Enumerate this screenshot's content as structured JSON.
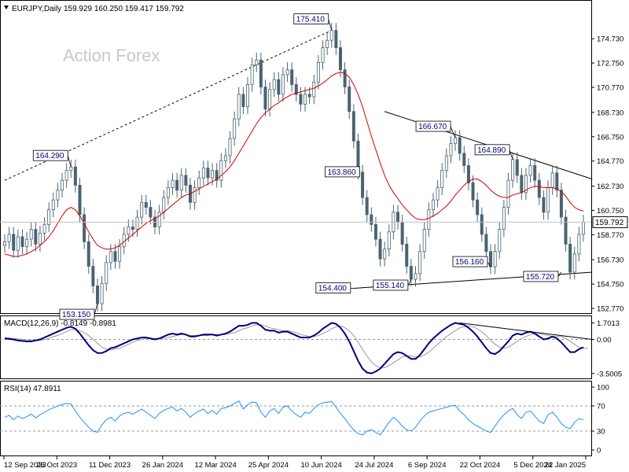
{
  "header": {
    "symbol_line": "EURJPY,Daily  159.929 160.250 159.417 159.792",
    "watermark": "Action Forex"
  },
  "colors": {
    "candles": "#4a6372",
    "ma": "#d00000",
    "macd_main": "#000080",
    "macd_signal": "#999999",
    "rsi": "#1e90ff",
    "last_price_box": "#ffffff",
    "grid": "#c0c0c0"
  },
  "chart_data": [
    {
      "type": "line",
      "name": "price",
      "title": "EURJPY,Daily",
      "ohlc_last": {
        "open": 159.929,
        "high": 160.25,
        "low": 159.417,
        "close": 159.792
      },
      "ylim": [
        152.77,
        176.73
      ],
      "y_ticks": [
        "174.730",
        "172.750",
        "170.770",
        "168.730",
        "166.750",
        "164.770",
        "162.730",
        "160.750",
        "158.770",
        "156.730",
        "154.750",
        "152.770"
      ],
      "x_ticks": [
        "12 Sep 2023",
        "26 Oct 2023",
        "11 Dec 2023",
        "26 Jan 2024",
        "12 Mar 2024",
        "25 Apr 2024",
        "10 Jun 2024",
        "24 Jul 2024",
        "6 Sep 2024",
        "22 Oct 2024",
        "5 Dec 2024",
        "22 Jan 2025"
      ],
      "last_price_label": "159.792",
      "close_series": [
        158.2,
        158.8,
        157.5,
        158.6,
        157.8,
        158.4,
        159.2,
        158.0,
        158.9,
        159.6,
        160.8,
        161.6,
        162.4,
        163.2,
        164.0,
        164.29,
        162.8,
        160.4,
        158.2,
        156.2,
        154.6,
        153.15,
        154.8,
        156.5,
        157.4,
        156.6,
        157.8,
        158.8,
        159.4,
        159.2,
        160.2,
        161.4,
        161.0,
        160.2,
        159.4,
        160.6,
        161.8,
        162.6,
        163.2,
        162.4,
        163.6,
        162.8,
        161.4,
        162.6,
        163.4,
        164.2,
        163.4,
        164.0,
        163.2,
        164.8,
        165.2,
        166.6,
        168.2,
        170.2,
        169.2,
        171.0,
        172.6,
        173.0,
        170.8,
        169.0,
        170.6,
        171.4,
        170.2,
        171.8,
        172.2,
        171.0,
        170.2,
        169.4,
        170.2,
        170.0,
        171.2,
        172.8,
        174.0,
        174.6,
        175.41,
        174.0,
        172.2,
        170.8,
        168.8,
        166.4,
        163.86,
        161.8,
        160.4,
        159.6,
        158.4,
        156.8,
        157.6,
        159.0,
        160.6,
        159.8,
        158.0,
        156.2,
        155.14,
        155.6,
        157.4,
        159.2,
        160.8,
        161.6,
        162.6,
        164.0,
        165.2,
        166.2,
        166.67,
        165.4,
        164.4,
        163.0,
        161.6,
        160.4,
        158.8,
        157.4,
        156.16,
        157.4,
        159.2,
        161.0,
        163.2,
        164.89,
        163.6,
        162.2,
        163.6,
        164.4,
        163.2,
        161.8,
        160.6,
        162.6,
        163.8,
        162.4,
        160.2,
        158.0,
        155.72,
        157.2,
        158.8,
        159.792
      ],
      "ma_series": [
        157.2,
        157.1,
        157.0,
        157.0,
        157.1,
        157.2,
        157.4,
        157.6,
        157.9,
        158.2,
        158.6,
        159.1,
        159.7,
        160.3,
        160.8,
        161.0,
        160.8,
        160.3,
        159.7,
        159.0,
        158.4,
        157.9,
        157.7,
        157.6,
        157.6,
        157.7,
        157.9,
        158.2,
        158.5,
        158.8,
        159.1,
        159.4,
        159.7,
        159.9,
        160.1,
        160.3,
        160.6,
        160.9,
        161.2,
        161.5,
        161.8,
        162.0,
        162.1,
        162.3,
        162.5,
        162.7,
        162.9,
        163.1,
        163.3,
        163.6,
        163.9,
        164.3,
        164.8,
        165.4,
        166.0,
        166.6,
        167.2,
        167.8,
        168.3,
        168.7,
        169.0,
        169.3,
        169.5,
        169.8,
        170.0,
        170.2,
        170.3,
        170.4,
        170.5,
        170.6,
        170.7,
        170.9,
        171.1,
        171.4,
        171.7,
        171.9,
        172.0,
        171.9,
        171.6,
        171.0,
        170.2,
        169.2,
        168.0,
        166.8,
        165.7,
        164.6,
        163.6,
        162.8,
        162.2,
        161.7,
        161.2,
        160.8,
        160.4,
        160.1,
        160.0,
        160.0,
        160.1,
        160.3,
        160.5,
        160.8,
        161.1,
        161.5,
        162.0,
        162.4,
        162.8,
        163.1,
        163.3,
        163.3,
        163.1,
        162.8,
        162.4,
        162.1,
        161.9,
        161.8,
        161.8,
        162.0,
        162.1,
        162.2,
        162.4,
        162.6,
        162.7,
        162.7,
        162.6,
        162.6,
        162.6,
        162.5,
        162.3,
        161.9,
        161.4,
        161.0,
        160.8,
        160.7
      ],
      "annotations": [
        {
          "text": "175.410",
          "price": 175.41,
          "index": 74
        },
        {
          "text": "164.290",
          "price": 164.29,
          "index": 15
        },
        {
          "text": "153.150",
          "price": 153.15,
          "index": 21
        },
        {
          "text": "163.860",
          "price": 163.86,
          "index": 80
        },
        {
          "text": "154.400",
          "price": 154.4,
          "index": 79
        },
        {
          "text": "155.140",
          "price": 155.14,
          "index": 92
        },
        {
          "text": "166.670",
          "price": 166.67,
          "index": 102
        },
        {
          "text": "156.160",
          "price": 156.16,
          "index": 110
        },
        {
          "text": "164.890",
          "price": 164.89,
          "index": 115
        },
        {
          "text": "155.720",
          "price": 155.72,
          "index": 126
        }
      ]
    },
    {
      "type": "line",
      "name": "macd",
      "title": "MACD(12,26,9) -0.8149 -0.8981",
      "ylim": [
        -3.6,
        1.9
      ],
      "y_ticks": [
        "1.7013",
        "0.00",
        "-3.5005"
      ],
      "main_series": [
        0.1,
        0.05,
        0.0,
        -0.1,
        -0.15,
        -0.2,
        -0.2,
        -0.1,
        0.0,
        0.2,
        0.4,
        0.6,
        0.8,
        1.0,
        1.2,
        1.3,
        1.1,
        0.6,
        0.0,
        -0.6,
        -1.1,
        -1.4,
        -1.4,
        -1.2,
        -0.9,
        -0.8,
        -0.6,
        -0.4,
        -0.2,
        0.0,
        0.1,
        0.2,
        0.2,
        0.1,
        0.0,
        0.1,
        0.3,
        0.5,
        0.6,
        0.5,
        0.6,
        0.5,
        0.3,
        0.3,
        0.4,
        0.5,
        0.5,
        0.5,
        0.4,
        0.5,
        0.6,
        0.8,
        1.1,
        1.4,
        1.4,
        1.5,
        1.7,
        1.7,
        1.4,
        1.0,
        0.9,
        0.9,
        0.7,
        0.8,
        0.8,
        0.6,
        0.4,
        0.2,
        0.2,
        0.2,
        0.4,
        0.7,
        1.1,
        1.4,
        1.7,
        1.6,
        1.2,
        0.6,
        -0.2,
        -1.2,
        -2.2,
        -3.0,
        -3.4,
        -3.5,
        -3.3,
        -3.0,
        -2.5,
        -2.0,
        -1.5,
        -1.3,
        -1.4,
        -1.7,
        -2.0,
        -2.0,
        -1.6,
        -1.0,
        -0.4,
        0.1,
        0.5,
        0.9,
        1.2,
        1.5,
        1.7,
        1.6,
        1.5,
        1.2,
        0.8,
        0.3,
        -0.3,
        -0.9,
        -1.4,
        -1.5,
        -1.2,
        -0.7,
        -0.2,
        0.4,
        0.6,
        0.5,
        0.7,
        0.8,
        0.6,
        0.3,
        0.0,
        0.1,
        0.3,
        0.1,
        -0.3,
        -0.8,
        -1.3,
        -1.3,
        -1.0,
        -0.8149
      ],
      "signal_series": [
        0.2,
        0.15,
        0.1,
        0.05,
        0.0,
        -0.05,
        -0.1,
        -0.1,
        -0.1,
        0.0,
        0.1,
        0.3,
        0.4,
        0.6,
        0.8,
        1.0,
        1.0,
        0.9,
        0.7,
        0.4,
        0.0,
        -0.4,
        -0.8,
        -1.0,
        -1.1,
        -1.0,
        -0.9,
        -0.7,
        -0.5,
        -0.3,
        -0.1,
        0.0,
        0.1,
        0.1,
        0.1,
        0.1,
        0.1,
        0.2,
        0.3,
        0.4,
        0.5,
        0.5,
        0.4,
        0.4,
        0.4,
        0.4,
        0.4,
        0.5,
        0.5,
        0.5,
        0.5,
        0.6,
        0.7,
        0.9,
        1.1,
        1.2,
        1.4,
        1.5,
        1.5,
        1.4,
        1.2,
        1.1,
        1.0,
        0.9,
        0.9,
        0.8,
        0.7,
        0.5,
        0.4,
        0.3,
        0.3,
        0.4,
        0.6,
        0.8,
        1.1,
        1.3,
        1.4,
        1.2,
        0.9,
        0.4,
        -0.3,
        -1.0,
        -1.7,
        -2.3,
        -2.7,
        -2.9,
        -2.9,
        -2.7,
        -2.4,
        -2.1,
        -1.8,
        -1.7,
        -1.7,
        -1.8,
        -1.8,
        -1.6,
        -1.3,
        -0.9,
        -0.5,
        -0.1,
        0.3,
        0.6,
        0.9,
        1.2,
        1.3,
        1.4,
        1.3,
        1.1,
        0.8,
        0.4,
        -0.1,
        -0.5,
        -0.8,
        -0.9,
        -0.8,
        -0.5,
        -0.2,
        0.1,
        0.3,
        0.5,
        0.6,
        0.6,
        0.5,
        0.4,
        0.3,
        0.3,
        0.3,
        0.1,
        -0.2,
        -0.5,
        -0.8,
        -0.9,
        -0.8981
      ]
    },
    {
      "type": "line",
      "name": "rsi",
      "title": "RSI(14) 47.8911",
      "ylim": [
        0,
        100
      ],
      "y_ticks": [
        "100",
        "70",
        "30",
        "0"
      ],
      "levels": [
        70,
        30
      ],
      "values": [
        52,
        55,
        48,
        54,
        50,
        53,
        57,
        51,
        56,
        60,
        64,
        67,
        70,
        72,
        74,
        73,
        62,
        52,
        44,
        36,
        30,
        28,
        40,
        48,
        52,
        46,
        54,
        58,
        60,
        57,
        61,
        65,
        60,
        55,
        50,
        58,
        63,
        66,
        68,
        62,
        66,
        60,
        52,
        58,
        62,
        65,
        58,
        63,
        57,
        66,
        67,
        70,
        74,
        78,
        65,
        72,
        76,
        75,
        60,
        52,
        62,
        66,
        58,
        68,
        70,
        62,
        56,
        52,
        60,
        58,
        66,
        72,
        75,
        76,
        77,
        68,
        58,
        50,
        40,
        32,
        26,
        24,
        30,
        32,
        28,
        24,
        34,
        44,
        52,
        46,
        38,
        32,
        30,
        36,
        46,
        54,
        60,
        62,
        64,
        66,
        68,
        70,
        71,
        62,
        56,
        48,
        42,
        38,
        34,
        30,
        28,
        38,
        48,
        56,
        62,
        66,
        56,
        50,
        60,
        62,
        54,
        46,
        42,
        56,
        60,
        52,
        42,
        36,
        34,
        44,
        50,
        47.8911
      ]
    }
  ],
  "trendlines": {
    "price_upper_dotted": [
      {
        "index": 0,
        "price": 163.2
      },
      {
        "index": 74,
        "price": 175.41
      }
    ],
    "price_upper_solid": [
      {
        "index": 86,
        "price": 168.8
      },
      {
        "index": 133,
        "price": 163.3
      }
    ],
    "price_lower_solid": [
      {
        "index": 79,
        "price": 154.4
      },
      {
        "index": 133,
        "price": 155.72
      }
    ],
    "macd_line": [
      {
        "index": 103,
        "price": 1.7
      },
      {
        "index": 133,
        "price": 0.0
      }
    ]
  }
}
